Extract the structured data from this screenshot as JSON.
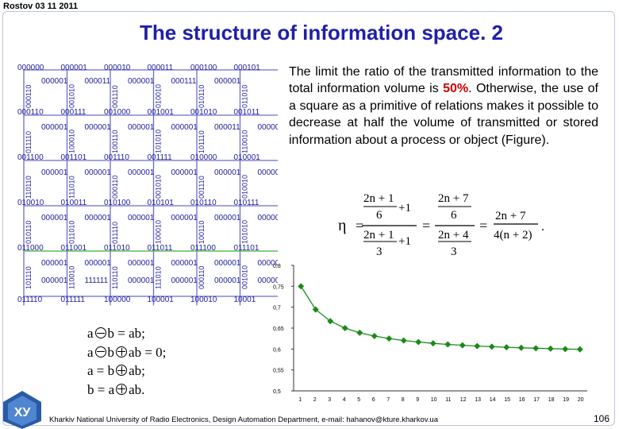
{
  "header": {
    "date": "Rostov 03 11 2011",
    "title": "The structure of information space. 2"
  },
  "paragraph": {
    "before": "The limit the ratio of the transmitted information to the total information volume is ",
    "highlight": "50%",
    "after": ". Otherwise, the use of a square as a primitive of relations makes it possible to decrease at half the volume of transmitted or stored information about a process or object (Figure)."
  },
  "formula": {
    "eta": "η",
    "t1": "2n + 1",
    "t2": "2n + 1",
    "plus1": "+1",
    "six1": "6",
    "three1": "3",
    "three2": "3",
    "six2": "6",
    "n1": "2n + 7",
    "d1": "2n + 4",
    "n2": "2n + 7",
    "d2": "4(n + 2)"
  },
  "relations": [
    {
      "lhs": "a",
      "op": "minus",
      "rhs": "b = ab;"
    },
    {
      "lhs": "a",
      "op": "minus",
      "rhs": "b",
      "op2": "plus",
      "rhs2": "ab = 0;"
    },
    {
      "text_a": "a = b",
      "op": "plus",
      "text_b": "ab;"
    },
    {
      "text_a": "b = a",
      "op": "plus",
      "text_b": "ab."
    }
  ],
  "grid": {
    "columns_top": [
      "000000",
      "000001",
      "000010",
      "000011",
      "000100",
      "000101"
    ],
    "row_left": [
      "000110",
      "001100",
      "010010",
      "011000",
      "011110"
    ],
    "inner_top_row": [
      "000001",
      "000011",
      "000001",
      "000111",
      "000001"
    ],
    "row_labels": [
      [
        "000110",
        "000111",
        "001000",
        "001001",
        "001010",
        "001011"
      ],
      [
        "001100",
        "001101",
        "001110",
        "001111",
        "010000",
        "010001"
      ],
      [
        "010010",
        "010011",
        "010100",
        "010101",
        "010110",
        "010111"
      ],
      [
        "011000",
        "011001",
        "011010",
        "011011",
        "011100",
        "011101"
      ],
      [
        "011110",
        "011111",
        "100000",
        "100001",
        "100010",
        "10001"
      ]
    ],
    "inner_labels": [
      [
        "000001",
        "000001",
        "000001",
        "000001",
        "000011",
        "000001"
      ],
      [
        "000001",
        "000001",
        "000001",
        "000001",
        "000001",
        "000001"
      ],
      [
        "000001",
        "000001",
        "000001",
        "000001",
        "000001",
        "000001"
      ],
      [
        "000001",
        "000001",
        "000001",
        "000001",
        "000001",
        "000001"
      ],
      [
        "000001",
        "111111",
        "000001",
        "000001",
        "000001",
        "000001"
      ]
    ],
    "vertical_labels": [
      "000110",
      "001010",
      "001110",
      "010010",
      "010110",
      "011010",
      "011110",
      "100010",
      "100110",
      "101010",
      "101110",
      "110010",
      "110110",
      "111010"
    ]
  },
  "chart_data": {
    "type": "line",
    "x": [
      1,
      2,
      3,
      4,
      5,
      6,
      7,
      8,
      9,
      10,
      11,
      12,
      13,
      14,
      15,
      16,
      17,
      18,
      19,
      20
    ],
    "series": [
      {
        "values": [
          0.75,
          0.6944,
          0.6667,
          0.65,
          0.6389,
          0.631,
          0.625,
          0.6204,
          0.6167,
          0.6136,
          0.6111,
          0.609,
          0.6071,
          0.6056,
          0.6042,
          0.6029,
          0.6019,
          0.6009,
          0.6,
          0.5992
        ]
      }
    ],
    "yticks": [
      "0,5",
      "0,55",
      "0,6",
      "0,65",
      "0,7",
      "0,75",
      "0,8"
    ],
    "ylim": [
      0.5,
      0.8
    ],
    "xticks": [
      "1",
      "2",
      "3",
      "4",
      "5",
      "6",
      "7",
      "8",
      "9",
      "10",
      "11",
      "12",
      "13",
      "14",
      "15",
      "16",
      "17",
      "18",
      "19",
      "20"
    ],
    "colors": {
      "line": "#1a8a1a",
      "axis": "#333333"
    }
  },
  "footer": {
    "text": "Kharkiv National University of Radio Electronics, Design Automation Department, e-mail: hahanov@kture.kharkov.ua",
    "page": "106",
    "logo": "ХУ"
  }
}
